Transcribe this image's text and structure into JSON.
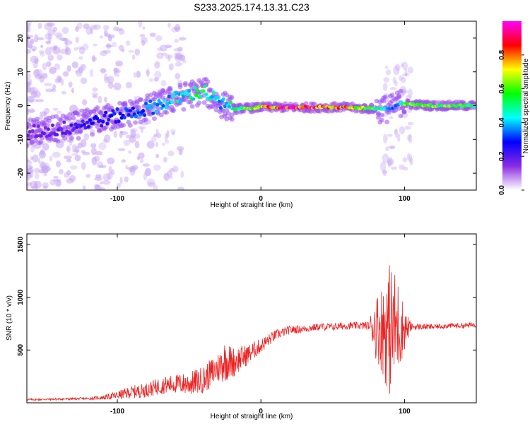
{
  "title": "S233.2025.174.13.31.C23",
  "chart_data": [
    {
      "type": "heatmap",
      "xlabel": "Height of straight line (km)",
      "ylabel": "Frequency (Hz)",
      "xlim": [
        -163,
        150
      ],
      "ylim": [
        -25,
        25
      ],
      "xticks": [
        -100,
        0,
        100
      ],
      "yticks": [
        -20,
        -10,
        0,
        10,
        20
      ],
      "colorbar": {
        "label": "Normalized spectral amplitude",
        "ticks": [
          0.0,
          0.2,
          0.4,
          0.6,
          0.8
        ],
        "range": [
          0,
          1
        ],
        "colormap": [
          "#ffffff",
          "#8a2be2",
          "#0000ff",
          "#00ffff",
          "#00ff00",
          "#ffff00",
          "#ff0000",
          "#ff00ff"
        ]
      },
      "ridge": {
        "description_points_x": [
          -163,
          -140,
          -120,
          -100,
          -80,
          -60,
          -40,
          -30,
          -20,
          0,
          20,
          40,
          60,
          80,
          90,
          98,
          100,
          120,
          150
        ],
        "description_points_y": [
          -8,
          -7,
          -5,
          -3,
          -1,
          2,
          4.5,
          1,
          -1,
          -0.5,
          -0.5,
          -0.5,
          -0.5,
          -1,
          -1,
          1,
          0.5,
          0,
          0
        ],
        "amplitude": [
          0.15,
          0.2,
          0.25,
          0.3,
          0.35,
          0.45,
          0.55,
          0.4,
          0.5,
          0.75,
          0.95,
          0.9,
          0.8,
          0.6,
          0.35,
          0.4,
          0.6,
          0.65,
          0.55
        ]
      }
    },
    {
      "type": "line",
      "xlabel": "Height of straight line (km)",
      "ylabel": "SNR (10 * v/v)",
      "xlim": [
        -163,
        150
      ],
      "ylim": [
        0,
        1600
      ],
      "xticks": [
        -100,
        0,
        100
      ],
      "yticks": [
        500,
        1000,
        1500
      ],
      "series": [
        {
          "color": "#ee2222",
          "x": [
            -163,
            -140,
            -120,
            -110,
            -100,
            -90,
            -80,
            -70,
            -60,
            -50,
            -40,
            -30,
            -25,
            -20,
            -10,
            0,
            10,
            20,
            30,
            40,
            50,
            60,
            70,
            75,
            80,
            85,
            90,
            95,
            100,
            105,
            110,
            120,
            130,
            140,
            150
          ],
          "y": [
            30,
            35,
            40,
            50,
            70,
            100,
            120,
            160,
            180,
            180,
            220,
            330,
            400,
            380,
            450,
            540,
            640,
            690,
            700,
            720,
            720,
            730,
            730,
            730,
            720,
            700,
            700,
            720,
            700,
            720,
            720,
            720,
            730,
            730,
            740
          ],
          "noise_amplitude": [
            10,
            10,
            12,
            20,
            40,
            60,
            70,
            80,
            90,
            110,
            130,
            150,
            200,
            150,
            100,
            70,
            50,
            40,
            35,
            35,
            35,
            35,
            35,
            40,
            300,
            450,
            650,
            500,
            200,
            30,
            30,
            25,
            25,
            25,
            25
          ]
        }
      ]
    }
  ]
}
